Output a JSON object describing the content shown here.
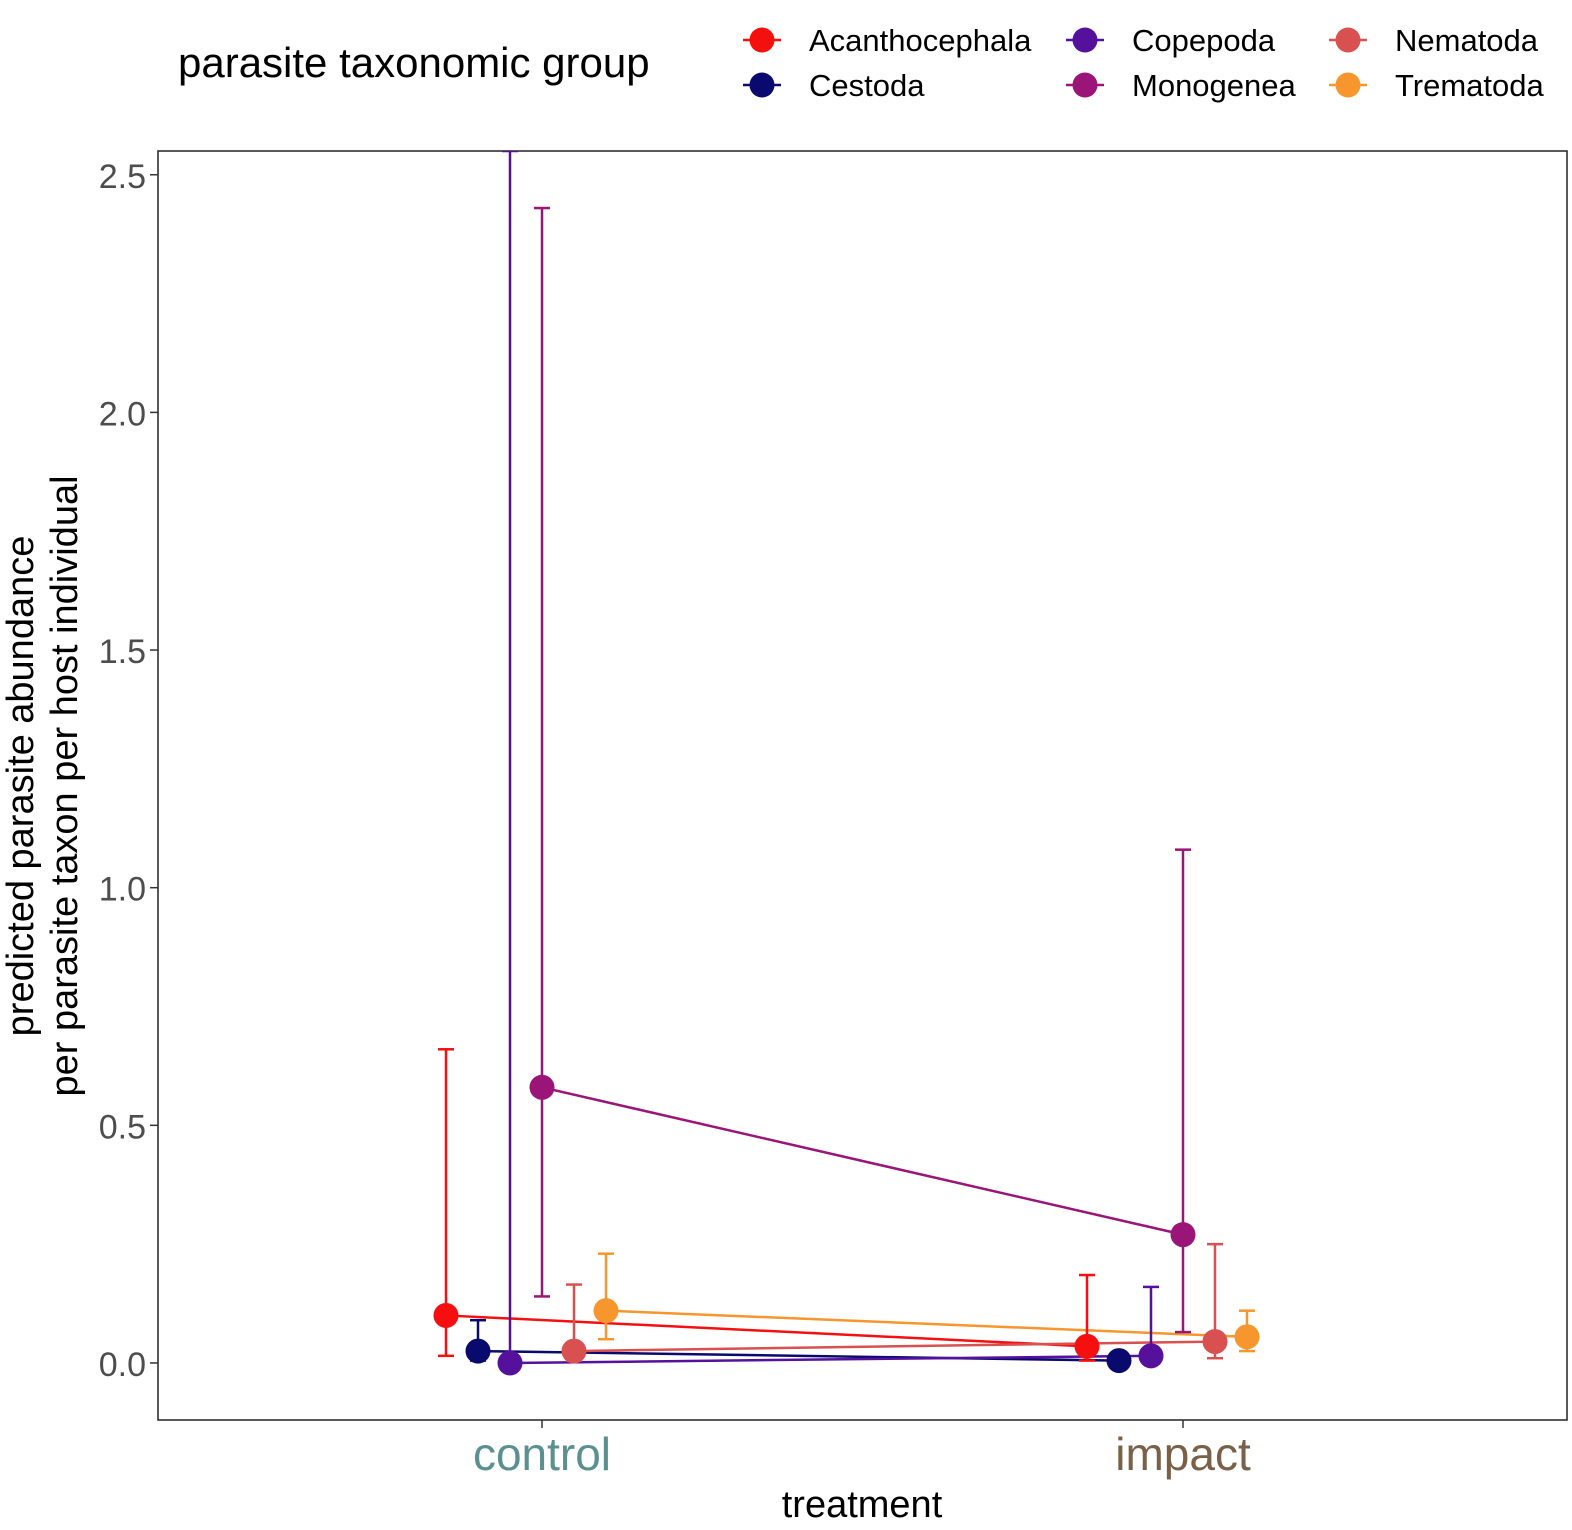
{
  "chart_data": {
    "type": "scatter",
    "xlabel": "treatment",
    "ylabel_line1": "predicted parasite abundance",
    "ylabel_line2": "per parasite taxon per host individual",
    "categories": [
      "control",
      "impact"
    ],
    "category_colors": {
      "control": "#5a9090",
      "impact": "#7a6048"
    },
    "ylim": [
      -0.12,
      2.55
    ],
    "yticks": [
      "0.0",
      "0.5",
      "1.0",
      "1.5",
      "2.0",
      "2.5"
    ],
    "legend": {
      "title": "parasite taxonomic group",
      "placement": "top"
    },
    "series": [
      {
        "name": "Acanthocephala",
        "color": "#f50f0f",
        "points": [
          {
            "x": "control",
            "y": 0.1,
            "lo": 0.015,
            "hi": 0.66
          },
          {
            "x": "impact",
            "y": 0.035,
            "lo": 0.005,
            "hi": 0.185
          }
        ]
      },
      {
        "name": "Cestoda",
        "color": "#0a0a6e",
        "points": [
          {
            "x": "control",
            "y": 0.025,
            "lo": 0.005,
            "hi": 0.09
          },
          {
            "x": "impact",
            "y": 0.005,
            "lo": 0.0,
            "hi": 0.01
          }
        ]
      },
      {
        "name": "Copepoda",
        "color": "#55119b",
        "points": [
          {
            "x": "control",
            "y": 0.0,
            "lo": 0.0,
            "hi": 2.55
          },
          {
            "x": "impact",
            "y": 0.015,
            "lo": 0.002,
            "hi": 0.16
          }
        ]
      },
      {
        "name": "Monogenea",
        "color": "#9b1478",
        "points": [
          {
            "x": "control",
            "y": 0.58,
            "lo": 0.14,
            "hi": 2.43
          },
          {
            "x": "impact",
            "y": 0.27,
            "lo": 0.065,
            "hi": 1.08
          }
        ]
      },
      {
        "name": "Nematoda",
        "color": "#d95050",
        "points": [
          {
            "x": "control",
            "y": 0.025,
            "lo": 0.005,
            "hi": 0.165
          },
          {
            "x": "impact",
            "y": 0.045,
            "lo": 0.01,
            "hi": 0.25
          }
        ]
      },
      {
        "name": "Trematoda",
        "color": "#f7962d",
        "points": [
          {
            "x": "control",
            "y": 0.11,
            "lo": 0.05,
            "hi": 0.23
          },
          {
            "x": "impact",
            "y": 0.055,
            "lo": 0.025,
            "hi": 0.11
          }
        ]
      }
    ]
  }
}
